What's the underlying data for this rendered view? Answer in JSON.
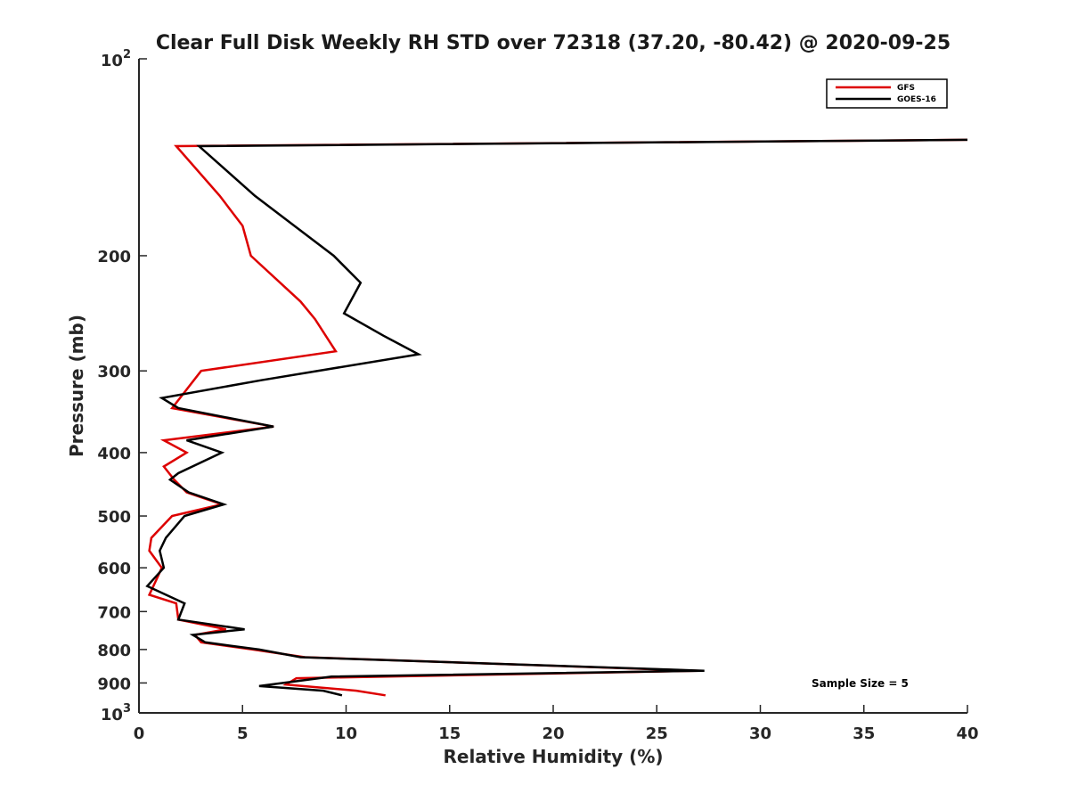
{
  "chart_data": {
    "type": "line",
    "title": "Clear Full Disk Weekly RH STD over 72318 (37.20, -80.42) @ 2020-09-25",
    "xlabel": "Relative Humidity (%)",
    "ylabel": "Pressure (mb)",
    "xlim": [
      0,
      40
    ],
    "ylim": [
      100,
      1000
    ],
    "y_scale": "log",
    "y_reversed": true,
    "grid": false,
    "legend_position": "top-right",
    "x_ticks": [
      "0",
      "5",
      "10",
      "15",
      "20",
      "25",
      "30",
      "35",
      "40"
    ],
    "y_ticks": [
      {
        "value": 100,
        "base": "10",
        "exp": "2"
      },
      {
        "value": 200,
        "label": "200"
      },
      {
        "value": 300,
        "label": "300"
      },
      {
        "value": 400,
        "label": "400"
      },
      {
        "value": 500,
        "label": "500"
      },
      {
        "value": 600,
        "label": "600"
      },
      {
        "value": 700,
        "label": "700"
      },
      {
        "value": 800,
        "label": "800"
      },
      {
        "value": 900,
        "label": "900"
      },
      {
        "value": 1000,
        "base": "10",
        "exp": "3"
      }
    ],
    "annotation": "Sample Size = 5",
    "series": [
      {
        "name": "GFS",
        "color": "#dd0000",
        "x": [
          40.0,
          1.8,
          3.9,
          5.0,
          5.4,
          7.8,
          8.5,
          9.5,
          3.0,
          1.6,
          6.5,
          1.2,
          2.3,
          1.2,
          1.7,
          2.3,
          4.0,
          1.6,
          0.6,
          0.5,
          1.1,
          0.9,
          0.5,
          1.8,
          1.9,
          4.2,
          2.7,
          3.0,
          5.5,
          8.0,
          27.0,
          7.6,
          7.1,
          10.5,
          11.9
        ],
        "y": [
          133,
          136,
          162,
          180,
          200,
          235,
          250,
          280,
          300,
          342,
          365,
          383,
          400,
          420,
          440,
          460,
          480,
          500,
          540,
          565,
          600,
          620,
          660,
          680,
          720,
          745,
          760,
          780,
          800,
          822,
          862,
          885,
          905,
          925,
          940
        ]
      },
      {
        "name": "GOES-16",
        "color": "#000000",
        "x": [
          40.0,
          2.9,
          5.6,
          9.4,
          10.7,
          9.9,
          11.8,
          13.5,
          5.9,
          1.1,
          1.9,
          6.5,
          2.3,
          4.0,
          1.9,
          1.5,
          2.4,
          4.1,
          2.2,
          1.3,
          1.0,
          1.2,
          0.4,
          2.2,
          1.9,
          5.1,
          2.6,
          3.2,
          5.8,
          7.8,
          27.3,
          9.3,
          5.8,
          8.9,
          9.8
        ],
        "y": [
          133,
          136,
          162,
          200,
          220,
          245,
          265,
          283,
          310,
          330,
          342,
          365,
          383,
          400,
          430,
          440,
          460,
          480,
          500,
          540,
          565,
          600,
          640,
          680,
          720,
          745,
          760,
          780,
          800,
          822,
          862,
          880,
          910,
          925,
          940
        ]
      }
    ]
  }
}
